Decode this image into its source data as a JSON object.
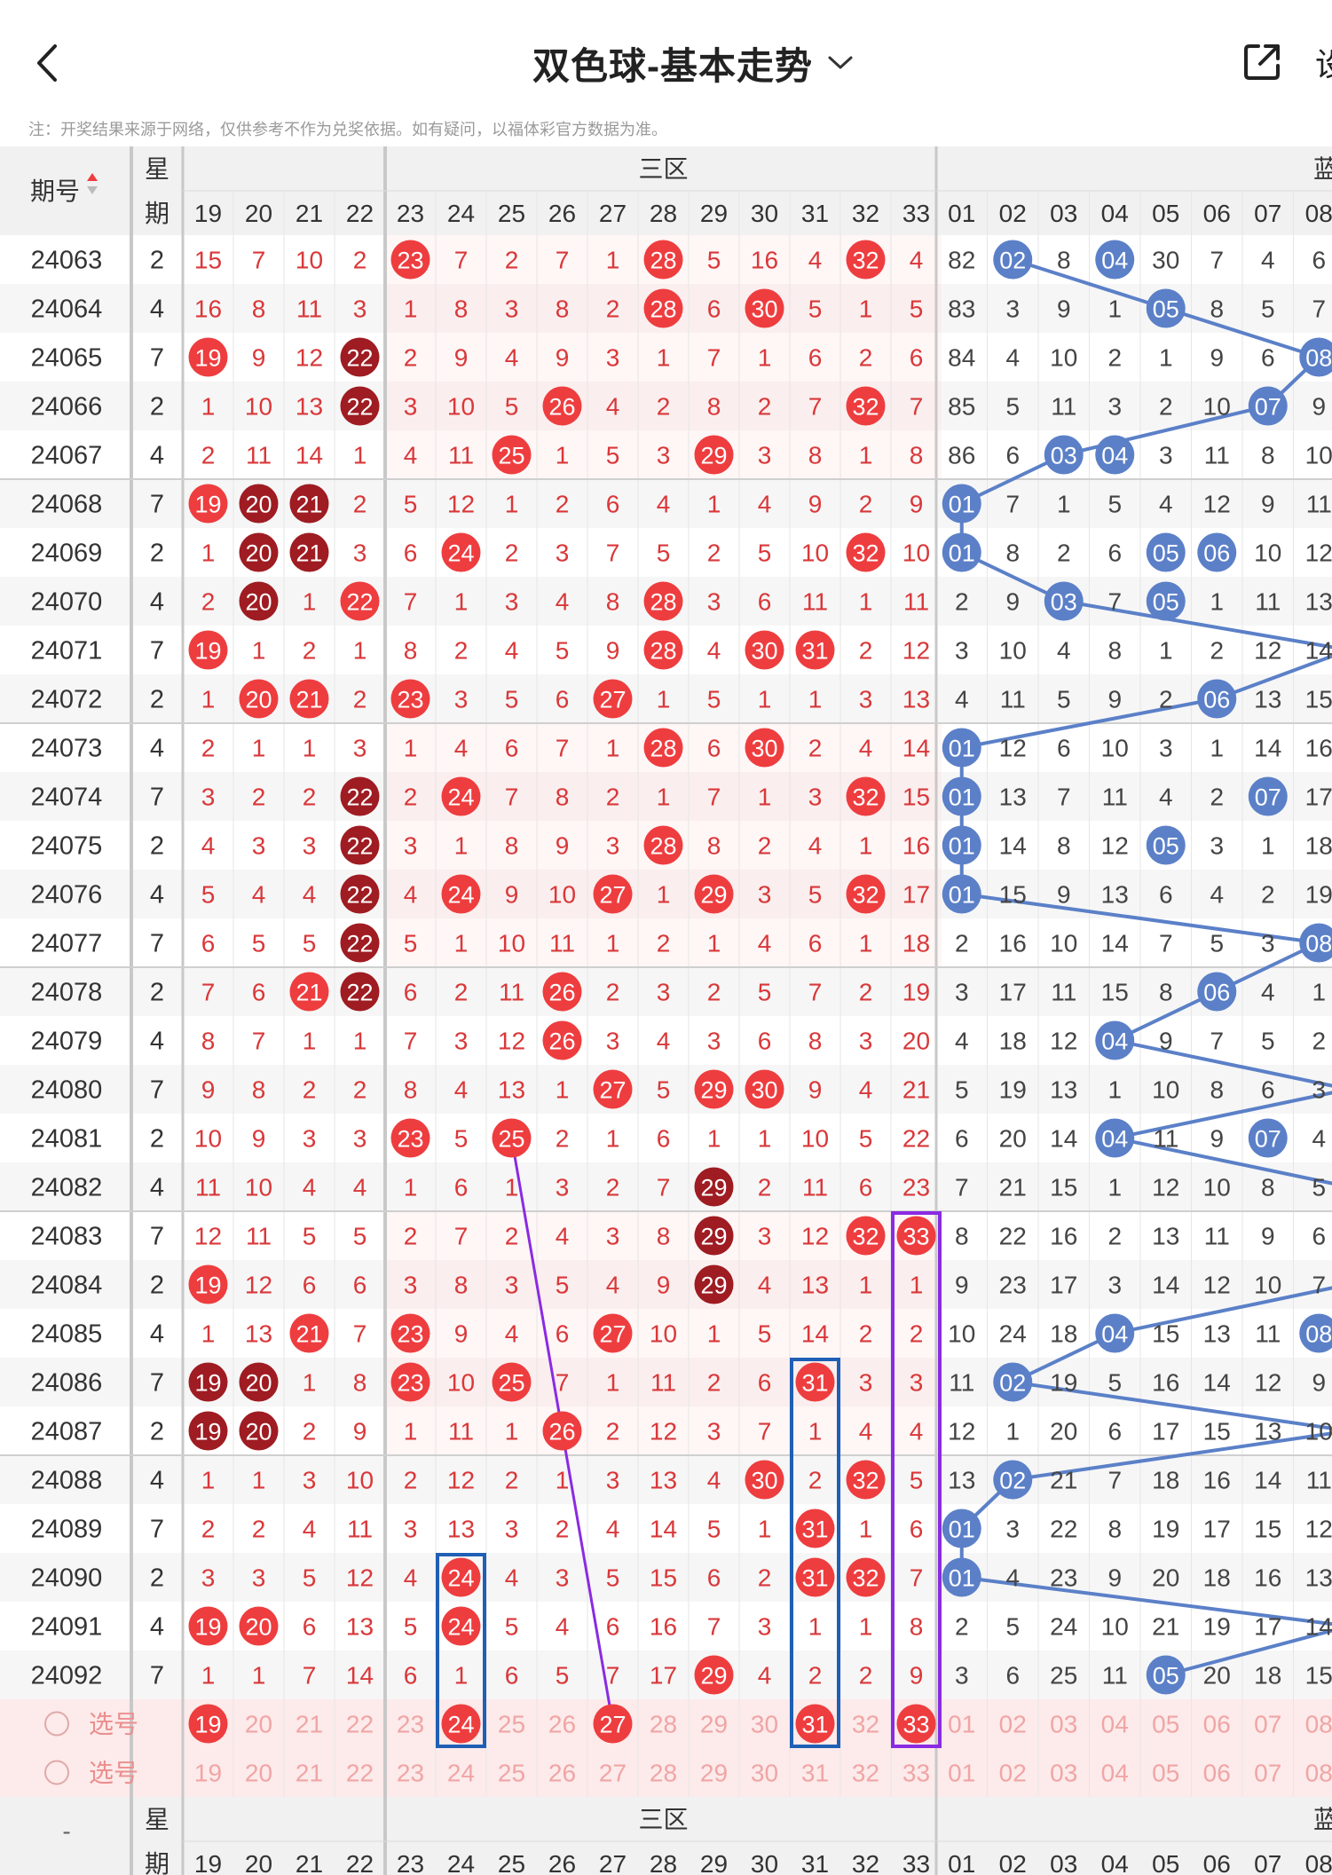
{
  "header": {
    "title": "双色球-基本走势",
    "settings_label_partial": "设"
  },
  "note": "注：开奖结果来源于网络，仅供参考不作为兑奖依据。如有疑问，以福体彩官方数据为准。",
  "table": {
    "col_issue_label": "期号",
    "col_week_label_top": "星",
    "col_week_label_bottom": "期",
    "zone3_label": "三区",
    "blue_zone_label_partial": "蓝",
    "red_numbers": [
      "19",
      "20",
      "21",
      "22",
      "23",
      "24",
      "25",
      "26",
      "27",
      "28",
      "29",
      "30",
      "31",
      "32",
      "33"
    ],
    "blue_numbers": [
      "01",
      "02",
      "03",
      "04",
      "05",
      "06",
      "07",
      "08"
    ],
    "footer_issue_label": "-",
    "select_label": "选号",
    "rows": [
      {
        "issue": "24063",
        "week": "2",
        "red": [
          15,
          7,
          10,
          2,
          23,
          7,
          2,
          7,
          1,
          28,
          5,
          16,
          4,
          32,
          4
        ],
        "blue": [
          82,
          2,
          8,
          4,
          30,
          7,
          4,
          6
        ]
      },
      {
        "issue": "24064",
        "week": "4",
        "red": [
          16,
          8,
          11,
          3,
          1,
          8,
          3,
          8,
          2,
          28,
          6,
          30,
          5,
          1,
          5
        ],
        "blue": [
          83,
          3,
          9,
          1,
          5,
          8,
          5,
          7
        ]
      },
      {
        "issue": "24065",
        "week": "7",
        "red": [
          19,
          9,
          12,
          22,
          2,
          9,
          4,
          9,
          3,
          1,
          7,
          1,
          6,
          2,
          6
        ],
        "blue": [
          84,
          4,
          10,
          2,
          1,
          9,
          6,
          8
        ]
      },
      {
        "issue": "24066",
        "week": "2",
        "red": [
          1,
          10,
          13,
          22,
          3,
          10,
          5,
          26,
          4,
          2,
          8,
          2,
          7,
          32,
          7
        ],
        "blue": [
          85,
          5,
          11,
          3,
          2,
          10,
          7,
          9
        ]
      },
      {
        "issue": "24067",
        "week": "4",
        "red": [
          2,
          11,
          14,
          1,
          4,
          11,
          25,
          1,
          5,
          3,
          29,
          3,
          8,
          1,
          8
        ],
        "blue": [
          86,
          6,
          3,
          4,
          3,
          11,
          8,
          10
        ]
      },
      {
        "issue": "24068",
        "week": "7",
        "red": [
          19,
          20,
          21,
          2,
          5,
          12,
          1,
          2,
          6,
          4,
          1,
          4,
          9,
          2,
          9
        ],
        "blue": [
          1,
          7,
          1,
          5,
          4,
          12,
          9,
          11
        ]
      },
      {
        "issue": "24069",
        "week": "2",
        "red": [
          1,
          20,
          21,
          3,
          6,
          24,
          2,
          3,
          7,
          5,
          2,
          5,
          10,
          32,
          10
        ],
        "blue": [
          1,
          8,
          2,
          6,
          5,
          6,
          10,
          12
        ]
      },
      {
        "issue": "24070",
        "week": "4",
        "red": [
          2,
          20,
          1,
          22,
          7,
          1,
          3,
          4,
          8,
          28,
          3,
          6,
          11,
          1,
          11
        ],
        "blue": [
          2,
          9,
          3,
          7,
          5,
          1,
          11,
          13
        ]
      },
      {
        "issue": "24071",
        "week": "7",
        "red": [
          19,
          1,
          2,
          1,
          8,
          2,
          4,
          5,
          9,
          28,
          4,
          30,
          31,
          2,
          12
        ],
        "blue": [
          3,
          10,
          4,
          8,
          1,
          2,
          12,
          14
        ]
      },
      {
        "issue": "24072",
        "week": "2",
        "red": [
          1,
          20,
          21,
          2,
          23,
          3,
          5,
          6,
          27,
          1,
          5,
          1,
          1,
          3,
          13
        ],
        "blue": [
          4,
          11,
          5,
          9,
          2,
          6,
          13,
          15
        ]
      },
      {
        "issue": "24073",
        "week": "4",
        "red": [
          2,
          1,
          1,
          3,
          1,
          4,
          6,
          7,
          1,
          28,
          6,
          30,
          2,
          4,
          14
        ],
        "blue": [
          1,
          12,
          6,
          10,
          3,
          1,
          14,
          16
        ]
      },
      {
        "issue": "24074",
        "week": "7",
        "red": [
          3,
          2,
          2,
          22,
          2,
          24,
          7,
          8,
          2,
          1,
          7,
          1,
          3,
          32,
          15
        ],
        "blue": [
          1,
          13,
          7,
          11,
          4,
          2,
          7,
          17
        ]
      },
      {
        "issue": "24075",
        "week": "2",
        "red": [
          4,
          3,
          3,
          22,
          3,
          1,
          8,
          9,
          3,
          28,
          8,
          2,
          4,
          1,
          16
        ],
        "blue": [
          1,
          14,
          8,
          12,
          5,
          3,
          1,
          18
        ]
      },
      {
        "issue": "24076",
        "week": "4",
        "red": [
          5,
          4,
          4,
          22,
          4,
          24,
          9,
          10,
          27,
          1,
          29,
          3,
          5,
          32,
          17
        ],
        "blue": [
          1,
          15,
          9,
          13,
          6,
          4,
          2,
          19
        ]
      },
      {
        "issue": "24077",
        "week": "7",
        "red": [
          6,
          5,
          5,
          22,
          5,
          1,
          10,
          11,
          1,
          2,
          1,
          4,
          6,
          1,
          18
        ],
        "blue": [
          2,
          16,
          10,
          14,
          7,
          5,
          3,
          8
        ]
      },
      {
        "issue": "24078",
        "week": "2",
        "red": [
          7,
          6,
          21,
          22,
          6,
          2,
          11,
          26,
          2,
          3,
          2,
          5,
          7,
          2,
          19
        ],
        "blue": [
          3,
          17,
          11,
          15,
          8,
          6,
          4,
          1
        ]
      },
      {
        "issue": "24079",
        "week": "4",
        "red": [
          8,
          7,
          1,
          1,
          7,
          3,
          12,
          26,
          3,
          4,
          3,
          6,
          8,
          3,
          20
        ],
        "blue": [
          4,
          18,
          12,
          4,
          9,
          7,
          5,
          2
        ]
      },
      {
        "issue": "24080",
        "week": "7",
        "red": [
          9,
          8,
          2,
          2,
          8,
          4,
          13,
          1,
          27,
          5,
          29,
          30,
          9,
          4,
          21
        ],
        "blue": [
          5,
          19,
          13,
          1,
          10,
          8,
          6,
          3
        ]
      },
      {
        "issue": "24081",
        "week": "2",
        "red": [
          10,
          9,
          3,
          3,
          23,
          5,
          25,
          2,
          1,
          6,
          1,
          1,
          10,
          5,
          22
        ],
        "blue": [
          6,
          20,
          14,
          4,
          11,
          9,
          7,
          4
        ]
      },
      {
        "issue": "24082",
        "week": "4",
        "red": [
          11,
          10,
          4,
          4,
          1,
          6,
          1,
          3,
          2,
          7,
          29,
          2,
          11,
          6,
          23
        ],
        "blue": [
          7,
          21,
          15,
          1,
          12,
          10,
          8,
          5
        ]
      },
      {
        "issue": "24083",
        "week": "7",
        "red": [
          12,
          11,
          5,
          5,
          2,
          7,
          2,
          4,
          3,
          8,
          29,
          3,
          12,
          32,
          33
        ],
        "blue": [
          8,
          22,
          16,
          2,
          13,
          11,
          9,
          6
        ]
      },
      {
        "issue": "24084",
        "week": "2",
        "red": [
          19,
          12,
          6,
          6,
          3,
          8,
          3,
          5,
          4,
          9,
          29,
          4,
          13,
          1,
          1
        ],
        "blue": [
          9,
          23,
          17,
          3,
          14,
          12,
          10,
          7
        ]
      },
      {
        "issue": "24085",
        "week": "4",
        "red": [
          1,
          13,
          21,
          7,
          23,
          9,
          4,
          6,
          27,
          10,
          1,
          5,
          14,
          2,
          2
        ],
        "blue": [
          10,
          24,
          18,
          4,
          15,
          13,
          11,
          8
        ]
      },
      {
        "issue": "24086",
        "week": "7",
        "red": [
          19,
          20,
          1,
          8,
          23,
          10,
          25,
          7,
          1,
          11,
          2,
          6,
          31,
          3,
          3
        ],
        "blue": [
          11,
          2,
          19,
          5,
          16,
          14,
          12,
          9
        ]
      },
      {
        "issue": "24087",
        "week": "2",
        "red": [
          19,
          20,
          2,
          9,
          1,
          11,
          1,
          26,
          2,
          12,
          3,
          7,
          1,
          4,
          4
        ],
        "blue": [
          12,
          1,
          20,
          6,
          17,
          15,
          13,
          10
        ]
      },
      {
        "issue": "24088",
        "week": "4",
        "red": [
          1,
          1,
          3,
          10,
          2,
          12,
          2,
          1,
          3,
          13,
          4,
          30,
          2,
          32,
          5
        ],
        "blue": [
          13,
          2,
          21,
          7,
          18,
          16,
          14,
          11
        ]
      },
      {
        "issue": "24089",
        "week": "7",
        "red": [
          2,
          2,
          4,
          11,
          3,
          13,
          3,
          2,
          4,
          14,
          5,
          1,
          31,
          1,
          6
        ],
        "blue": [
          1,
          3,
          22,
          8,
          19,
          17,
          15,
          12
        ]
      },
      {
        "issue": "24090",
        "week": "2",
        "red": [
          3,
          3,
          5,
          12,
          4,
          24,
          4,
          3,
          5,
          15,
          6,
          2,
          31,
          32,
          7
        ],
        "blue": [
          1,
          4,
          23,
          9,
          20,
          18,
          16,
          13
        ]
      },
      {
        "issue": "24091",
        "week": "4",
        "red": [
          19,
          20,
          6,
          13,
          5,
          24,
          5,
          4,
          6,
          16,
          7,
          3,
          1,
          1,
          8
        ],
        "blue": [
          2,
          5,
          24,
          10,
          21,
          19,
          17,
          14
        ]
      },
      {
        "issue": "24092",
        "week": "7",
        "red": [
          1,
          1,
          7,
          14,
          6,
          1,
          6,
          5,
          7,
          17,
          29,
          4,
          2,
          2,
          9
        ],
        "blue": [
          3,
          6,
          25,
          11,
          5,
          20,
          18,
          15
        ]
      }
    ],
    "select_row_picks": [
      "19",
      "24",
      "27",
      "31",
      "33"
    ]
  },
  "colors": {
    "red_ball": "#ee3d3f",
    "dark_red_ball": "#9e1c22",
    "blue_ball": "#5b80c8",
    "red_text": "#d9383a",
    "blue_zone_line": "#5b80c8",
    "purple_line": "#8a2be2",
    "select_row_bg": "#fdeaea"
  }
}
